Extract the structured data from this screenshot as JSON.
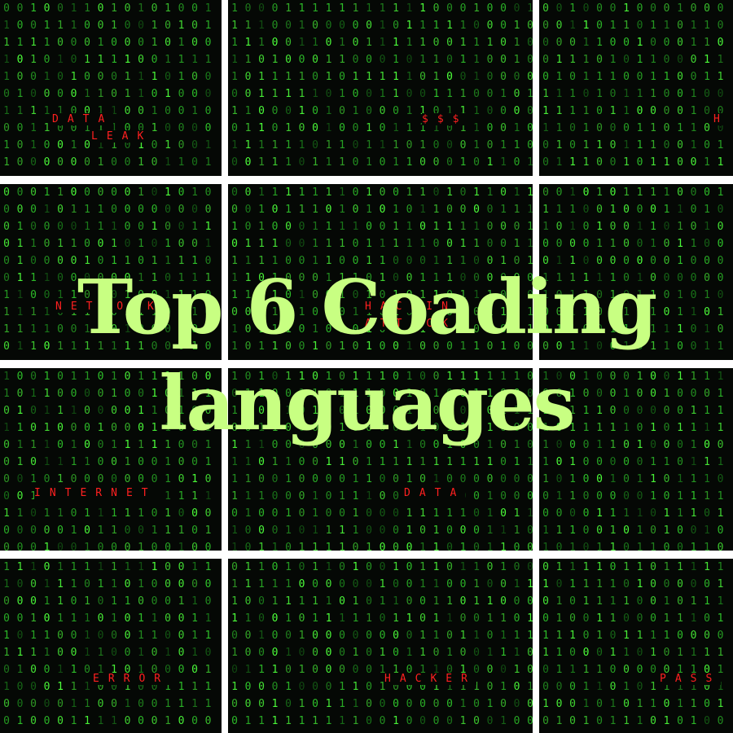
{
  "headline": {
    "line1": "Top 6 Coading",
    "line2": "languages"
  },
  "panel_words": [
    {
      "panel": "r0c0-a",
      "text": "DATA"
    },
    {
      "panel": "r0c0-b",
      "text": "LEAK"
    },
    {
      "panel": "r0c1",
      "text": "$$$"
    },
    {
      "panel": "r0c2",
      "text": "H"
    },
    {
      "panel": "r1c0",
      "text": "NETWORK"
    },
    {
      "panel": "r1c1-a",
      "text": "HACKIN"
    },
    {
      "panel": "r1c1-b",
      "text": "ATTACK"
    },
    {
      "panel": "r2c0",
      "text": "INTERNET"
    },
    {
      "panel": "r2c1",
      "text": "DATA"
    },
    {
      "panel": "r3c0",
      "text": "ERROR"
    },
    {
      "panel": "r3c1",
      "text": "HACKER"
    },
    {
      "panel": "r3c2",
      "text": "PASS"
    }
  ],
  "colors": {
    "background": "#050805",
    "digit_bright": "#4cff3a",
    "digit_mid": "#2ec22a",
    "digit_dim": "#1a7a1a",
    "word": "#ff2020",
    "headline": "#c8ff82",
    "gutter": "#ffffff"
  }
}
